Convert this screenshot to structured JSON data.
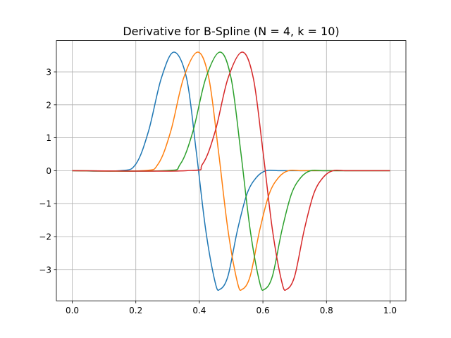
{
  "chart_data": {
    "type": "line",
    "title": "Derivative for B-Spline (N = 4, k = 10)",
    "xlabel": "",
    "ylabel": "",
    "xlim": [
      -0.05,
      1.05
    ],
    "ylim": [
      -3.95,
      3.95
    ],
    "x_ticks": [
      0.0,
      0.2,
      0.4,
      0.6,
      0.8,
      1.0
    ],
    "x_tick_labels": [
      "0.0",
      "0.2",
      "0.4",
      "0.6",
      "0.8",
      "1.0"
    ],
    "y_ticks": [
      -3,
      -2,
      -1,
      0,
      1,
      2,
      3
    ],
    "y_tick_labels": [
      "−3",
      "−2",
      "−1",
      "0",
      "1",
      "2",
      "3"
    ],
    "grid": true,
    "legend": "none",
    "series": [
      {
        "color": "#1f77b4",
        "x": [
          0.0,
          0.15,
          0.2,
          0.24,
          0.28,
          0.32,
          0.36,
          0.39,
          0.42,
          0.45,
          0.465,
          0.49,
          0.52,
          0.55,
          0.58,
          0.61,
          0.65,
          0.7,
          1.0
        ],
        "values": [
          0.0,
          0.0,
          0.2,
          1.2,
          2.8,
          3.6,
          2.8,
          0.6,
          -1.8,
          -3.4,
          -3.6,
          -3.2,
          -1.8,
          -0.7,
          -0.2,
          0.0,
          0.0,
          0.0,
          0.0
        ]
      },
      {
        "color": "#ff7f0e",
        "x": [
          0.0,
          0.22,
          0.27,
          0.31,
          0.35,
          0.395,
          0.43,
          0.46,
          0.49,
          0.52,
          0.535,
          0.56,
          0.59,
          0.62,
          0.65,
          0.68,
          0.72,
          0.77,
          1.0
        ],
        "values": [
          0.0,
          0.0,
          0.2,
          1.2,
          2.8,
          3.6,
          2.8,
          0.6,
          -1.8,
          -3.4,
          -3.6,
          -3.2,
          -1.8,
          -0.7,
          -0.2,
          0.0,
          0.0,
          0.0,
          0.0
        ]
      },
      {
        "color": "#2ca02c",
        "x": [
          0.0,
          0.29,
          0.34,
          0.38,
          0.42,
          0.465,
          0.5,
          0.53,
          0.56,
          0.59,
          0.605,
          0.63,
          0.66,
          0.69,
          0.72,
          0.75,
          0.79,
          0.84,
          1.0
        ],
        "values": [
          0.0,
          0.0,
          0.2,
          1.2,
          2.8,
          3.6,
          2.8,
          0.6,
          -1.8,
          -3.4,
          -3.6,
          -3.2,
          -1.8,
          -0.7,
          -0.2,
          0.0,
          0.0,
          0.0,
          0.0
        ]
      },
      {
        "color": "#d62728",
        "x": [
          0.0,
          0.36,
          0.41,
          0.45,
          0.49,
          0.535,
          0.57,
          0.6,
          0.63,
          0.66,
          0.675,
          0.7,
          0.73,
          0.76,
          0.79,
          0.82,
          0.86,
          0.91,
          1.0
        ],
        "values": [
          0.0,
          0.0,
          0.2,
          1.2,
          2.8,
          3.6,
          2.8,
          0.6,
          -1.8,
          -3.4,
          -3.6,
          -3.2,
          -1.8,
          -0.7,
          -0.2,
          0.0,
          0.0,
          0.0,
          0.0
        ]
      }
    ]
  }
}
